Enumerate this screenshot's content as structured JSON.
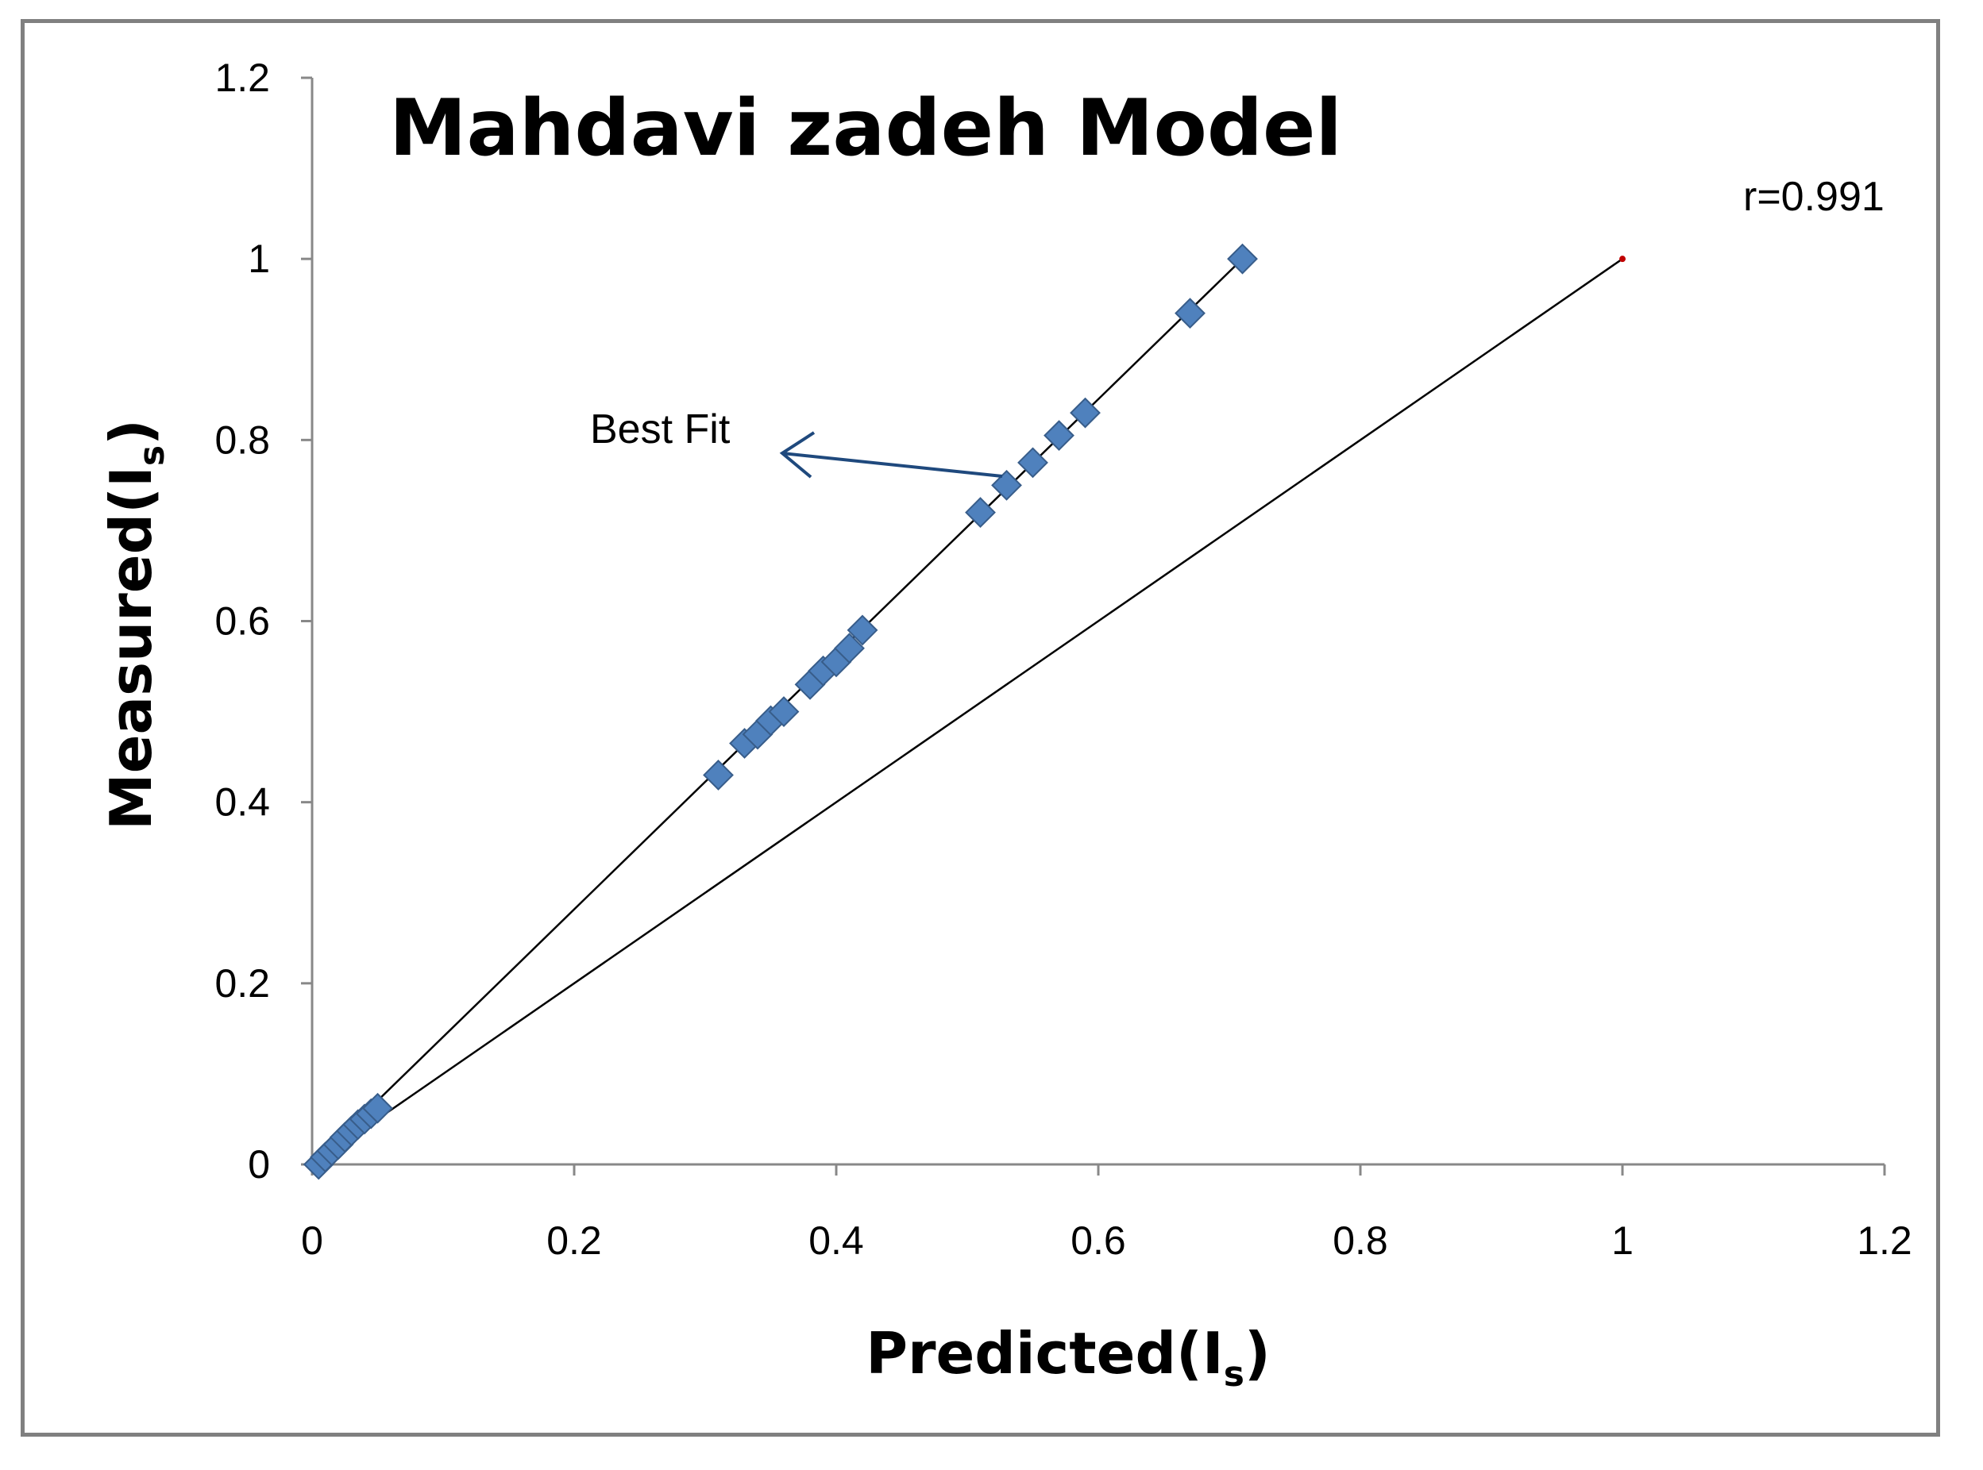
{
  "chart_data": {
    "type": "scatter",
    "title": "Mahdavi zadeh  Model",
    "xlabel": "Predicted(I",
    "ylabel": "Measured(I",
    "axis_label_subscript": "s",
    "axis_label_close": ")",
    "xlim": [
      0,
      1.2
    ],
    "ylim": [
      0,
      1.2
    ],
    "xticks": [
      "0",
      "0.2",
      "0.4",
      "0.6",
      "0.8",
      "1",
      "1.2"
    ],
    "yticks": [
      "0",
      "0.2",
      "0.4",
      "0.6",
      "0.8",
      "1",
      "1.2"
    ],
    "grid": false,
    "series": [
      {
        "marker": "diamond",
        "color": "#4f81bd",
        "points": [
          {
            "x": 0.005,
            "y": 0.0
          },
          {
            "x": 0.01,
            "y": 0.008
          },
          {
            "x": 0.015,
            "y": 0.015
          },
          {
            "x": 0.02,
            "y": 0.022
          },
          {
            "x": 0.025,
            "y": 0.03
          },
          {
            "x": 0.03,
            "y": 0.037
          },
          {
            "x": 0.035,
            "y": 0.044
          },
          {
            "x": 0.04,
            "y": 0.05
          },
          {
            "x": 0.045,
            "y": 0.056
          },
          {
            "x": 0.05,
            "y": 0.062
          },
          {
            "x": 0.31,
            "y": 0.43
          },
          {
            "x": 0.33,
            "y": 0.465
          },
          {
            "x": 0.34,
            "y": 0.475
          },
          {
            "x": 0.35,
            "y": 0.49
          },
          {
            "x": 0.36,
            "y": 0.5
          },
          {
            "x": 0.38,
            "y": 0.53
          },
          {
            "x": 0.39,
            "y": 0.545
          },
          {
            "x": 0.4,
            "y": 0.555
          },
          {
            "x": 0.41,
            "y": 0.57
          },
          {
            "x": 0.42,
            "y": 0.59
          },
          {
            "x": 0.51,
            "y": 0.72
          },
          {
            "x": 0.53,
            "y": 0.75
          },
          {
            "x": 0.55,
            "y": 0.775
          },
          {
            "x": 0.57,
            "y": 0.805
          },
          {
            "x": 0.59,
            "y": 0.83
          },
          {
            "x": 0.67,
            "y": 0.94
          },
          {
            "x": 0.71,
            "y": 1.0
          }
        ]
      }
    ],
    "lines": [
      {
        "name": "Best Fit",
        "x": [
          0,
          0.71
        ],
        "y": [
          0,
          1.0
        ],
        "color": "#000000"
      },
      {
        "x": [
          0,
          1
        ],
        "y": [
          0,
          1
        ],
        "color": "#000000"
      }
    ],
    "annotations": {
      "best_fit": "Best Fit",
      "r_value": "r=0.991"
    },
    "colors": {
      "marker": "#4f81bd",
      "marker_edge": "#385d8a",
      "arrow": "#1f497d",
      "endpoint": "#c00000",
      "frame": "#808080"
    }
  }
}
